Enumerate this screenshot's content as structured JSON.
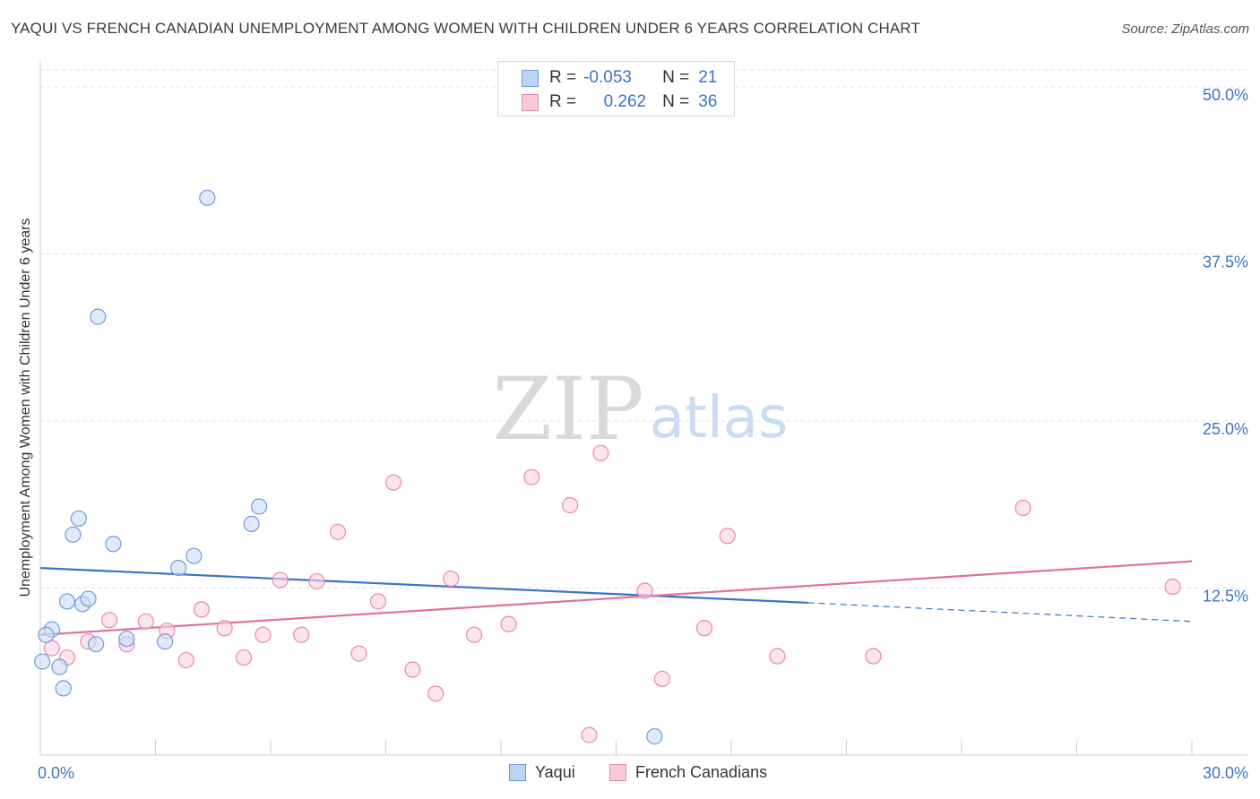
{
  "header": {
    "title": "YAQUI VS FRENCH CANADIAN UNEMPLOYMENT AMONG WOMEN WITH CHILDREN UNDER 6 YEARS CORRELATION CHART",
    "source": "Source: ZipAtlas.com"
  },
  "watermark": {
    "zip": "ZIP",
    "atlas": "atlas"
  },
  "stats_legend": {
    "rows": [
      {
        "r_label": "R =",
        "r_value": "-0.053",
        "n_label": "N =",
        "n_value": "21",
        "color": "#6d9ce0",
        "fill": "#bcd3f3"
      },
      {
        "r_label": "R =",
        "r_value": "0.262",
        "n_label": "N =",
        "n_value": "36",
        "color": "#e889ad",
        "fill": "#f8c9d8"
      }
    ]
  },
  "series_legend": {
    "yaqui": "Yaqui",
    "french": "French Canadians"
  },
  "colors": {
    "yaqui_stroke": "#6d9ce0",
    "yaqui_fill": "#c9dcf6",
    "yaqui_line": "#3a74c9",
    "french_stroke": "#e889ad",
    "french_fill": "#f9d2df",
    "french_line": "#e0709a",
    "tick_label": "#3a74c9",
    "grid": "#e3e3e3"
  },
  "chart_data": {
    "type": "scatter",
    "title": "YAQUI VS FRENCH CANADIAN UNEMPLOYMENT AMONG WOMEN WITH CHILDREN UNDER 6 YEARS CORRELATION CHART",
    "xlabel": "",
    "ylabel": "Unemployment Among Women with Children Under 6 years",
    "xlim": [
      0,
      30
    ],
    "ylim": [
      0,
      50
    ],
    "x_tick_labels": [
      "0.0%",
      "30.0%"
    ],
    "y_ticks": [
      {
        "value": 12.5,
        "label": "12.5%"
      },
      {
        "value": 25,
        "label": "25.0%"
      },
      {
        "value": 37.5,
        "label": "37.5%"
      },
      {
        "value": 50,
        "label": "50.0%"
      }
    ],
    "series": [
      {
        "name": "Yaqui",
        "points": [
          {
            "x": 0.05,
            "y": 7.0
          },
          {
            "x": 0.3,
            "y": 9.4
          },
          {
            "x": 0.5,
            "y": 6.6
          },
          {
            "x": 0.6,
            "y": 5.0
          },
          {
            "x": 0.7,
            "y": 11.5
          },
          {
            "x": 0.85,
            "y": 16.5
          },
          {
            "x": 1.0,
            "y": 17.7
          },
          {
            "x": 1.1,
            "y": 11.3
          },
          {
            "x": 1.25,
            "y": 11.7
          },
          {
            "x": 1.45,
            "y": 8.3
          },
          {
            "x": 1.5,
            "y": 32.8
          },
          {
            "x": 1.9,
            "y": 15.8
          },
          {
            "x": 2.25,
            "y": 8.7
          },
          {
            "x": 3.25,
            "y": 8.5
          },
          {
            "x": 3.6,
            "y": 14.0
          },
          {
            "x": 4.0,
            "y": 14.9
          },
          {
            "x": 4.35,
            "y": 41.7
          },
          {
            "x": 5.5,
            "y": 17.3
          },
          {
            "x": 5.7,
            "y": 18.6
          },
          {
            "x": 16.0,
            "y": 1.4
          },
          {
            "x": 0.15,
            "y": 9.0
          }
        ],
        "trend": {
          "x": [
            0,
            20
          ],
          "y": [
            14.0,
            11.4
          ]
        },
        "trend_dashed": {
          "x": [
            20,
            30
          ],
          "y": [
            11.4,
            10.0
          ]
        }
      },
      {
        "name": "French Canadians",
        "points": [
          {
            "x": 0.3,
            "y": 8.0
          },
          {
            "x": 0.7,
            "y": 7.3
          },
          {
            "x": 1.25,
            "y": 8.5
          },
          {
            "x": 1.8,
            "y": 10.1
          },
          {
            "x": 2.25,
            "y": 8.3
          },
          {
            "x": 2.75,
            "y": 10.0
          },
          {
            "x": 3.3,
            "y": 9.3
          },
          {
            "x": 3.8,
            "y": 7.1
          },
          {
            "x": 4.2,
            "y": 10.9
          },
          {
            "x": 4.8,
            "y": 9.5
          },
          {
            "x": 5.3,
            "y": 7.3
          },
          {
            "x": 5.8,
            "y": 9.0
          },
          {
            "x": 6.25,
            "y": 13.1
          },
          {
            "x": 6.8,
            "y": 9.0
          },
          {
            "x": 7.2,
            "y": 13.0
          },
          {
            "x": 7.75,
            "y": 16.7
          },
          {
            "x": 8.3,
            "y": 7.6
          },
          {
            "x": 8.8,
            "y": 11.5
          },
          {
            "x": 9.2,
            "y": 20.4
          },
          {
            "x": 9.7,
            "y": 6.4
          },
          {
            "x": 10.3,
            "y": 4.6
          },
          {
            "x": 10.7,
            "y": 13.2
          },
          {
            "x": 11.3,
            "y": 9.0
          },
          {
            "x": 12.2,
            "y": 9.8
          },
          {
            "x": 12.8,
            "y": 20.8
          },
          {
            "x": 13.8,
            "y": 18.7
          },
          {
            "x": 14.3,
            "y": 1.5
          },
          {
            "x": 14.6,
            "y": 22.6
          },
          {
            "x": 15.75,
            "y": 12.3
          },
          {
            "x": 16.2,
            "y": 5.7
          },
          {
            "x": 17.3,
            "y": 9.5
          },
          {
            "x": 17.9,
            "y": 16.4
          },
          {
            "x": 19.2,
            "y": 7.4
          },
          {
            "x": 21.7,
            "y": 7.4
          },
          {
            "x": 25.6,
            "y": 18.5
          },
          {
            "x": 29.5,
            "y": 12.6
          }
        ],
        "trend": {
          "x": [
            0,
            30
          ],
          "y": [
            9.0,
            14.5
          ]
        }
      }
    ]
  }
}
